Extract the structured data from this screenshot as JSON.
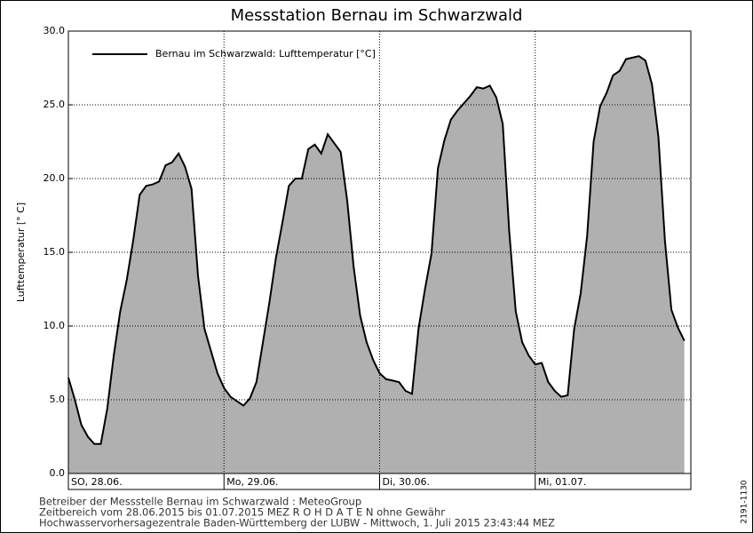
{
  "chart_data": {
    "type": "area",
    "title": "Messstation Bernau im Schwarzwald",
    "ylabel": "Lufttemperatur [° C]",
    "xlim": [
      0,
      96
    ],
    "xticks": [
      {
        "value": 0,
        "label": "SO, 28.06."
      },
      {
        "value": 24,
        "label": "Mo, 29.06."
      },
      {
        "value": 48,
        "label": "Di, 30.06."
      },
      {
        "value": 72,
        "label": "Mi, 01.07."
      }
    ],
    "ylim": [
      0,
      30
    ],
    "yticks": [
      {
        "value": 0,
        "label": "0.0"
      },
      {
        "value": 5,
        "label": "5.0"
      },
      {
        "value": 10,
        "label": "10.0"
      },
      {
        "value": 15,
        "label": "15.0"
      },
      {
        "value": 20,
        "label": "20.0"
      },
      {
        "value": 25,
        "label": "25.0"
      },
      {
        "value": 30,
        "label": "30.0"
      }
    ],
    "grid": true,
    "legend": "upper left",
    "series": [
      {
        "name": "Bernau im Schwarzwald: Lufttemperatur [°C]",
        "color": "#000000",
        "fill": "#b0b0b0",
        "x": [
          0,
          1,
          2,
          3,
          4,
          5,
          6,
          7,
          8,
          9,
          10,
          11,
          12,
          13,
          14,
          15,
          16,
          17,
          18,
          19,
          20,
          21,
          22,
          23,
          24,
          25,
          26,
          27,
          28,
          29,
          30,
          31,
          32,
          33,
          34,
          35,
          36,
          37,
          38,
          39,
          40,
          41,
          42,
          43,
          44,
          45,
          46,
          47,
          48,
          49,
          50,
          51,
          52,
          53,
          54,
          55,
          56,
          57,
          58,
          59,
          60,
          61,
          62,
          63,
          64,
          65,
          66,
          67,
          68,
          69,
          70,
          71,
          72,
          73,
          74,
          75,
          76,
          77,
          78,
          79,
          80,
          81,
          82,
          83,
          84,
          85,
          86,
          87,
          88,
          89,
          90,
          91,
          92,
          93,
          94,
          95
        ],
        "values": [
          6.5,
          5.0,
          3.3,
          2.5,
          2.0,
          2.0,
          4.4,
          8.0,
          11.0,
          13.1,
          15.8,
          18.9,
          19.5,
          19.6,
          19.8,
          20.9,
          21.1,
          21.7,
          20.8,
          19.3,
          13.4,
          9.8,
          8.3,
          6.8,
          5.8,
          5.2,
          4.9,
          4.6,
          5.1,
          6.2,
          8.9,
          11.6,
          14.6,
          17.0,
          19.5,
          20.0,
          20.0,
          22.0,
          22.3,
          21.7,
          23.0,
          22.4,
          21.8,
          18.5,
          14.0,
          10.7,
          8.9,
          7.7,
          6.8,
          6.4,
          6.3,
          6.2,
          5.6,
          5.4,
          9.8,
          12.5,
          14.9,
          20.7,
          22.6,
          24.0,
          24.6,
          25.1,
          25.6,
          26.2,
          26.1,
          26.3,
          25.5,
          23.7,
          16.4,
          11.0,
          8.9,
          8.0,
          7.4,
          7.5,
          6.2,
          5.6,
          5.2,
          5.3,
          9.8,
          12.2,
          16.1,
          22.5,
          24.9,
          25.8,
          27.0,
          27.3,
          28.1,
          28.2,
          28.3,
          28.0,
          26.4,
          22.8,
          15.8,
          11.1,
          9.9,
          9.0
        ]
      }
    ],
    "footer": [
      "Betreiber der Messstelle Bernau im Schwarzwald : MeteoGroup",
      "Zeitbereich vom 28.06.2015 bis 01.07.2015    MEZ    R O H D A T E N ohne Gewähr",
      "Hochwasservorhersagezentrale Baden-Württemberg der LUBW - Mittwoch, 1. Juli 2015 23:43:44 MEZ"
    ],
    "side_label": "2191-1130"
  }
}
